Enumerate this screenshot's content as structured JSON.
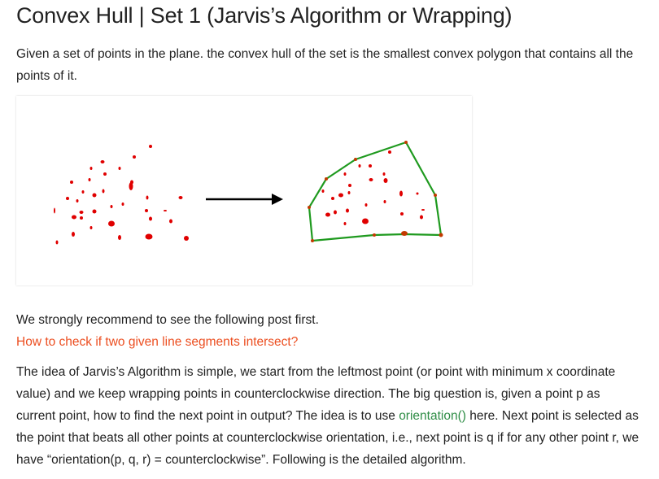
{
  "article": {
    "title": "Convex Hull | Set 1 (Jarvis’s Algorithm or Wrapping)",
    "intro": "Given a set of points in the plane. the convex hull of the set is the smallest convex polygon that contains all the points of it.",
    "recommend": "We strongly recommend to see the following post first.",
    "recommend_link": "How to check if two given line segments intersect?",
    "body": {
      "part1": "The idea of Jarvis’s Algorithm is simple, we start from the leftmost point (or point with minimum x coordinate value) and we keep wrapping points in counterclockwise direction. The big question is, given a point p as current point, how to find the next point in output? The idea is to use ",
      "link": "orientation()",
      "part2": " here. Next point is selected as the point that beats all other points at counterclockwise orientation, i.e., next point is q if for any other point r, we have “orientation(p, q, r) = counterclockwise”. Following is the detailed algorithm."
    }
  },
  "colors": {
    "text": "#222222",
    "link_red": "#ec4e20",
    "link_green": "#2f8d46",
    "point": "#e00000",
    "hull": "#1f9a1f",
    "arrow": "#000000"
  }
}
